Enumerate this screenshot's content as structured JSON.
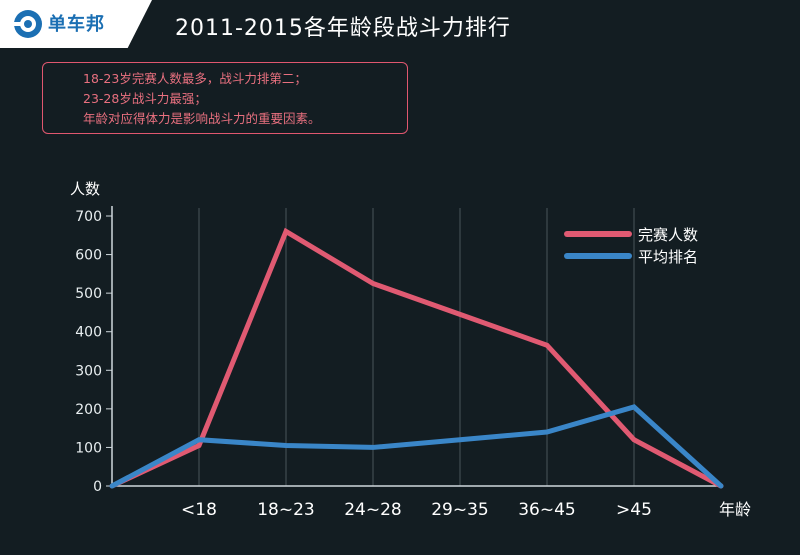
{
  "header": {
    "logo_text": "单车邦",
    "title": "2011-2015各年龄段战斗力排行"
  },
  "notes": [
    "18-23岁完赛人数最多，战斗力排第二；",
    "23-28岁战斗力最强；",
    "年龄对应得体力是影响战斗力的重要因素。"
  ],
  "colors": {
    "background": "#131d22",
    "series_red": "#e05a72",
    "series_blue": "#3a86c8",
    "grid": "#4a555a"
  },
  "chart_data": {
    "type": "line",
    "ylabel": "人数",
    "xlabel": "年龄",
    "ylim": [
      0,
      700
    ],
    "yticks": [
      0,
      100,
      200,
      300,
      400,
      500,
      600,
      700
    ],
    "categories": [
      "",
      "<18",
      "18~23",
      "24~28",
      "29~35",
      "36~45",
      ">45",
      ""
    ],
    "grid": "vertical",
    "legend_position": "top-right",
    "series": [
      {
        "name": "完赛人数",
        "color": "#e05a72",
        "values": [
          0,
          105,
          660,
          525,
          445,
          365,
          120,
          0
        ]
      },
      {
        "name": "平均排名",
        "color": "#3a86c8",
        "values": [
          0,
          120,
          105,
          100,
          120,
          140,
          205,
          0
        ]
      }
    ]
  }
}
